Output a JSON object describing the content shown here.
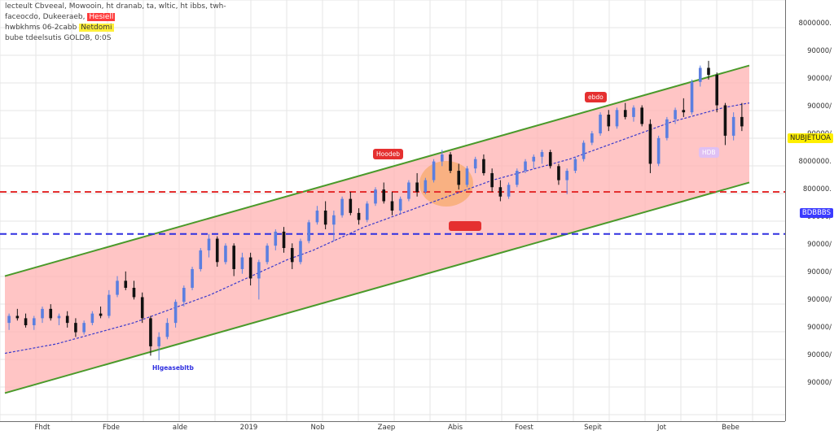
{
  "legend": {
    "line1": "lecteult Cbveeal, Mowooin, ht dranab, ta, wltic, ht ibbs, twh-",
    "line2": "faceocdo, Dukeeraeb,",
    "line2_highlight": "Hesiell",
    "line3": "hwbkhms 06-2cabb",
    "line3_highlight": "Netdomi",
    "line4": "bube tdeelsutis GOLDB, 0:0S"
  },
  "price_axis": {
    "ticks": [
      "8000000.",
      "90000/",
      "90000/",
      "90000/",
      "90000/",
      "8000000.",
      "800000.",
      "90000/",
      "90000/",
      "90000/",
      "90000/",
      "90000/",
      "90000/",
      "90000/"
    ],
    "tag_yellow": "NUBJETUOA",
    "tag_blue": "BDBBBS",
    "colors": {
      "yellow": "#ffef00",
      "blue": "#3b3bff"
    }
  },
  "time_axis": {
    "ticks": [
      "Fhdt",
      "Fbde",
      "alde",
      "2019",
      "Nob",
      "Zaep",
      "Abis",
      "Foest",
      "Sepit",
      "Jot",
      "Bebe"
    ]
  },
  "annotations": {
    "tag_a": "Hoodeb",
    "tag_b": "ebdo",
    "tag_c": "Hlgeasebltb",
    "tag_d": "HDB"
  },
  "colors": {
    "channel_fill": "#ffb6b6",
    "channel_line": "#4a9a2a",
    "resistance": "#e53030",
    "support": "#3030e0",
    "moving_avg": "#3a3acc",
    "candle_up": "#5b7fe0",
    "candle_down": "#111111",
    "grid": "#e6e6e6",
    "highlight_orange": "#f4a04a"
  },
  "chart_data": {
    "type": "candlestick",
    "title": "",
    "xlabel": "",
    "ylabel": "",
    "grid": true,
    "ohlc": [
      [
        8.2,
        8.6,
        7.9,
        8.5
      ],
      [
        8.5,
        8.8,
        8.3,
        8.4
      ],
      [
        8.4,
        8.6,
        8.0,
        8.1
      ],
      [
        8.1,
        8.5,
        7.9,
        8.4
      ],
      [
        8.4,
        8.9,
        8.2,
        8.8
      ],
      [
        8.8,
        9.0,
        8.3,
        8.4
      ],
      [
        8.4,
        8.6,
        8.1,
        8.5
      ],
      [
        8.5,
        8.7,
        8.0,
        8.2
      ],
      [
        8.2,
        8.4,
        7.6,
        7.8
      ],
      [
        7.8,
        8.3,
        7.7,
        8.2
      ],
      [
        8.2,
        8.7,
        8.1,
        8.6
      ],
      [
        8.6,
        8.9,
        8.4,
        8.5
      ],
      [
        8.5,
        9.6,
        8.4,
        9.4
      ],
      [
        9.4,
        10.2,
        9.3,
        10.0
      ],
      [
        10.0,
        10.4,
        9.6,
        9.7
      ],
      [
        9.7,
        10.0,
        9.2,
        9.3
      ],
      [
        9.3,
        9.5,
        8.2,
        8.4
      ],
      [
        8.4,
        8.5,
        6.8,
        7.2
      ],
      [
        7.2,
        7.8,
        6.6,
        7.6
      ],
      [
        7.6,
        8.4,
        7.5,
        8.2
      ],
      [
        8.2,
        9.2,
        8.0,
        9.1
      ],
      [
        9.1,
        9.8,
        8.9,
        9.7
      ],
      [
        9.7,
        10.6,
        9.6,
        10.5
      ],
      [
        10.5,
        11.4,
        10.4,
        11.3
      ],
      [
        11.3,
        12.0,
        11.0,
        11.8
      ],
      [
        11.8,
        11.9,
        10.6,
        10.8
      ],
      [
        10.8,
        11.6,
        10.7,
        11.5
      ],
      [
        11.5,
        11.6,
        10.2,
        10.5
      ],
      [
        10.5,
        11.2,
        10.3,
        11.0
      ],
      [
        11.0,
        11.2,
        9.8,
        10.1
      ],
      [
        10.1,
        10.9,
        9.2,
        10.8
      ],
      [
        10.8,
        11.6,
        10.7,
        11.5
      ],
      [
        11.5,
        12.2,
        11.3,
        12.1
      ],
      [
        12.1,
        12.3,
        11.2,
        11.4
      ],
      [
        11.4,
        11.6,
        10.5,
        10.8
      ],
      [
        10.8,
        11.8,
        10.7,
        11.7
      ],
      [
        11.7,
        12.6,
        11.6,
        12.5
      ],
      [
        12.5,
        13.2,
        12.4,
        13.0
      ],
      [
        13.0,
        13.4,
        12.2,
        12.4
      ],
      [
        12.4,
        13.0,
        11.7,
        12.8
      ],
      [
        12.8,
        13.6,
        12.7,
        13.5
      ],
      [
        13.5,
        13.8,
        12.8,
        12.9
      ],
      [
        12.9,
        13.1,
        12.4,
        12.6
      ],
      [
        12.6,
        13.4,
        12.5,
        13.3
      ],
      [
        13.3,
        14.0,
        13.2,
        13.9
      ],
      [
        13.9,
        14.2,
        13.3,
        13.4
      ],
      [
        13.4,
        13.8,
        12.8,
        13.0
      ],
      [
        13.0,
        13.6,
        12.9,
        13.5
      ],
      [
        13.5,
        14.3,
        13.4,
        14.2
      ],
      [
        14.2,
        14.6,
        13.6,
        13.8
      ],
      [
        13.8,
        14.4,
        13.7,
        14.3
      ],
      [
        14.3,
        15.2,
        14.2,
        15.1
      ],
      [
        15.1,
        15.6,
        14.9,
        15.4
      ],
      [
        15.4,
        15.5,
        14.6,
        14.7
      ],
      [
        14.7,
        15.0,
        13.9,
        14.1
      ],
      [
        14.1,
        14.9,
        14.0,
        14.8
      ],
      [
        14.8,
        15.3,
        14.6,
        15.2
      ],
      [
        15.2,
        15.4,
        14.5,
        14.6
      ],
      [
        14.6,
        14.8,
        13.8,
        14.0
      ],
      [
        14.0,
        14.3,
        13.4,
        13.6
      ],
      [
        13.6,
        14.2,
        13.5,
        14.1
      ],
      [
        14.1,
        14.8,
        14.0,
        14.7
      ],
      [
        14.7,
        15.2,
        14.6,
        15.1
      ],
      [
        15.1,
        15.4,
        14.8,
        15.3
      ],
      [
        15.3,
        15.6,
        15.0,
        15.5
      ],
      [
        15.5,
        15.6,
        14.8,
        14.9
      ],
      [
        14.9,
        15.0,
        14.1,
        14.3
      ],
      [
        14.3,
        14.8,
        13.7,
        14.7
      ],
      [
        14.7,
        15.3,
        14.6,
        15.2
      ],
      [
        15.2,
        16.0,
        15.1,
        15.9
      ],
      [
        15.9,
        16.4,
        15.8,
        16.3
      ],
      [
        16.3,
        17.2,
        16.2,
        17.1
      ],
      [
        17.1,
        17.3,
        16.4,
        16.6
      ],
      [
        16.6,
        17.4,
        16.5,
        17.3
      ],
      [
        17.3,
        17.6,
        16.9,
        17.0
      ],
      [
        17.0,
        17.5,
        16.8,
        17.4
      ],
      [
        17.4,
        17.5,
        16.6,
        16.7
      ],
      [
        16.7,
        16.9,
        14.6,
        15.0
      ],
      [
        15.0,
        16.2,
        14.9,
        16.1
      ],
      [
        16.1,
        17.0,
        16.0,
        16.9
      ],
      [
        16.9,
        17.4,
        16.7,
        17.3
      ],
      [
        17.3,
        17.8,
        17.0,
        17.2
      ],
      [
        17.2,
        18.6,
        17.1,
        18.5
      ],
      [
        18.5,
        19.2,
        18.3,
        19.1
      ],
      [
        19.1,
        19.4,
        18.6,
        18.8
      ],
      [
        18.8,
        18.9,
        17.2,
        17.5
      ],
      [
        17.5,
        17.6,
        15.8,
        16.2
      ],
      [
        16.2,
        17.2,
        16.0,
        17.0
      ],
      [
        17.0,
        17.6,
        16.4,
        16.6
      ]
    ],
    "moving_average": [
      6.9,
      7.1,
      7.3,
      7.6,
      7.9,
      8.2,
      8.6,
      9.0,
      9.4,
      9.9,
      10.4,
      10.9,
      11.3,
      11.8,
      12.3,
      12.7,
      13.1,
      13.5,
      13.9,
      14.3,
      14.6,
      14.9,
      15.2,
      15.6,
      16.0,
      16.4,
      16.8,
      17.1,
      17.4,
      17.6
    ],
    "channel": {
      "lower_start": 5.2,
      "lower_end": 14.2,
      "width": 5.0
    },
    "resistance": 13.8,
    "support": 12.0
  }
}
